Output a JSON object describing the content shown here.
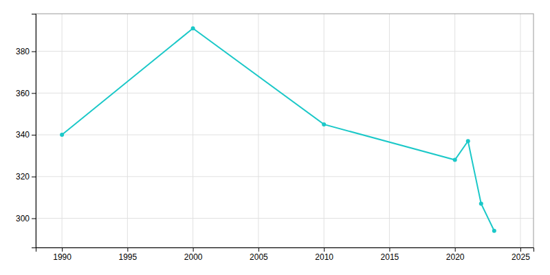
{
  "chart_data": {
    "type": "line",
    "x": [
      1990,
      2000,
      2010,
      2020,
      2021,
      2022,
      2023
    ],
    "values": [
      340,
      391,
      345,
      328,
      337,
      307,
      294
    ],
    "color": "#1BC8C8",
    "marker": "circle",
    "xlim": [
      1988,
      2026
    ],
    "ylim": [
      286,
      398
    ],
    "xticks": [
      1990,
      1995,
      2000,
      2005,
      2010,
      2015,
      2020,
      2025
    ],
    "yticks": [
      300,
      320,
      340,
      360,
      380
    ],
    "grid": true
  }
}
